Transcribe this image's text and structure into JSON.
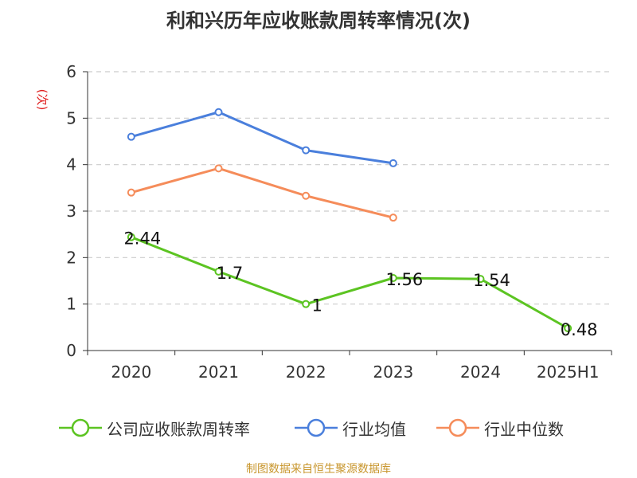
{
  "title": "利和兴历年应收账款周转率情况(次)",
  "source": "制图数据来自恒生聚源数据库",
  "chart_data": {
    "type": "line",
    "ylabel": "(次)",
    "categories": [
      "2020",
      "2021",
      "2022",
      "2023",
      "2024",
      "2025H1"
    ],
    "ylim": [
      0,
      6
    ],
    "yticks": [
      "0",
      "1",
      "2",
      "3",
      "4",
      "5",
      "6"
    ],
    "grid": true,
    "legend_position": "bottom",
    "series": [
      {
        "name": "公司应收账款周转率",
        "color": "#5cc422",
        "values": [
          2.44,
          1.7,
          1,
          1.56,
          1.54,
          0.48
        ],
        "labels": [
          "2.44",
          "1.7",
          "1",
          "1.56",
          "1.54",
          "0.48"
        ]
      },
      {
        "name": "行业均值",
        "color": "#4a7fdc",
        "values": [
          4.6,
          5.13,
          4.31,
          4.03,
          null,
          null
        ]
      },
      {
        "name": "行业中位数",
        "color": "#f58c5a",
        "values": [
          3.4,
          3.92,
          3.33,
          2.86,
          null,
          null
        ]
      }
    ]
  }
}
